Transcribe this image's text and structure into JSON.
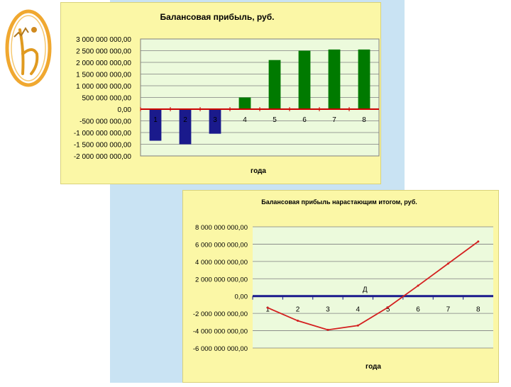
{
  "chart_data": [
    {
      "type": "bar",
      "title": "Балансовая прибыль, руб.",
      "xlabel": "года",
      "ylabel": "",
      "categories": [
        "1",
        "2",
        "3",
        "4",
        "5",
        "6",
        "7",
        "8"
      ],
      "values": [
        -1350000000,
        -1500000000,
        -1050000000,
        500000000,
        2100000000,
        2500000000,
        2550000000,
        2550000000
      ],
      "ylim": [
        -2000000000,
        3000000000
      ],
      "yticks": [
        "3 000 000 000,00",
        "2 500 000 000,00",
        "2 000 000 000,00",
        "1 500 000 000,00",
        "1 000 000 000,00",
        "500 000 000,00",
        "0,00",
        "-500 000 000,00",
        "-1 000 000 000,00",
        "-1 500 000 000,00",
        "-2 000 000 000,00"
      ],
      "colors": {
        "negative": "#1a1a8c",
        "positive": "#007a00",
        "baseline": "#cc0000",
        "plot_bg": "#ecfadc",
        "grid": "#7f7f7f"
      }
    },
    {
      "type": "line",
      "title": "Балансовая прибыль нарастающим итогом, руб.",
      "xlabel": "года",
      "ylabel": "",
      "annotation": "Д",
      "categories": [
        "1",
        "2",
        "3",
        "4",
        "5",
        "6",
        "7",
        "8"
      ],
      "values": [
        -1350000000,
        -2850000000,
        -3900000000,
        -3400000000,
        -1300000000,
        1200000000,
        3750000000,
        6300000000
      ],
      "ylim": [
        -6000000000,
        8000000000
      ],
      "yticks": [
        "8 000 000 000,00",
        "6 000 000 000,00",
        "4 000 000 000,00",
        "2 000 000 000,00",
        "0,00",
        "-2 000 000 000,00",
        "-4 000 000 000,00",
        "-6 000 000 000,00"
      ],
      "colors": {
        "line": "#d42020",
        "baseline": "#1a1a8c",
        "plot_bg": "#ecfadc",
        "grid": "#7f7f7f"
      }
    }
  ]
}
